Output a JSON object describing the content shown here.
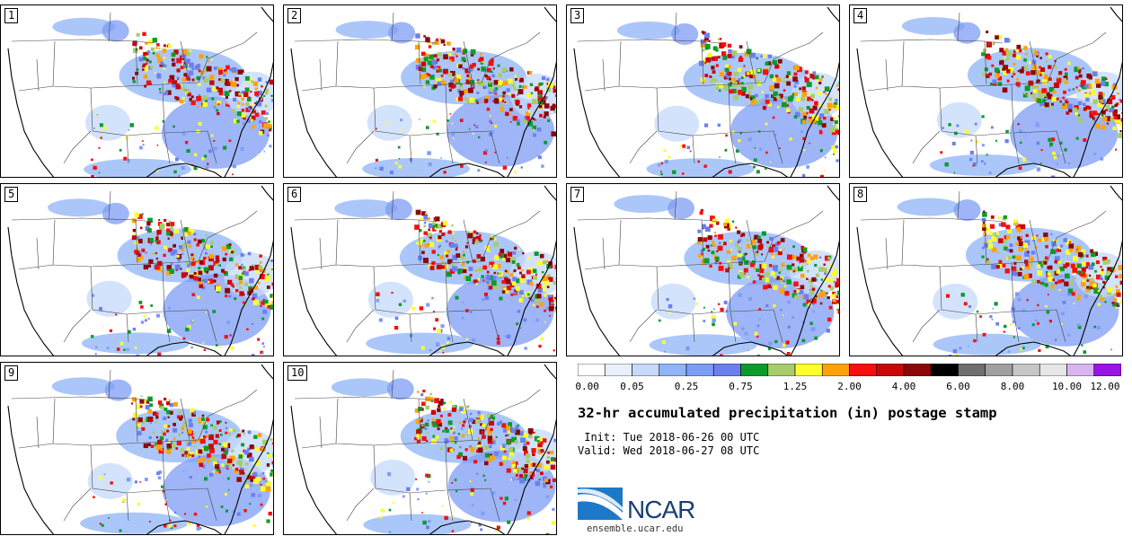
{
  "members": [
    {
      "label": "1",
      "seed": 11
    },
    {
      "label": "2",
      "seed": 23
    },
    {
      "label": "3",
      "seed": 37
    },
    {
      "label": "4",
      "seed": 41
    },
    {
      "label": "5",
      "seed": 53
    },
    {
      "label": "6",
      "seed": 67
    },
    {
      "label": "7",
      "seed": 71
    },
    {
      "label": "8",
      "seed": 83
    },
    {
      "label": "9",
      "seed": 97
    },
    {
      "label": "10",
      "seed": 101
    }
  ],
  "colorbar": {
    "colors": [
      "#ffffff",
      "#e8f0fd",
      "#c6d9fb",
      "#8fb4f8",
      "#7d9cf4",
      "#6c7ff0",
      "#0a9c2a",
      "#a7cc6a",
      "#ffff29",
      "#ffa20a",
      "#f50f0f",
      "#c80808",
      "#8c0808",
      "#000000",
      "#6e6e6e",
      "#a0a0a0",
      "#c6c6c6",
      "#e6e6e6",
      "#d8b4f0",
      "#9a14e6"
    ],
    "tick_labels": [
      "0.00",
      "0.05",
      "0.25",
      "0.75",
      "1.25",
      "2.00",
      "4.00",
      "6.00",
      "8.00",
      "10.00",
      "12.00"
    ]
  },
  "title": "32-hr accumulated precipitation (in) postage stamp",
  "init_line": " Init: Tue 2018-06-26 00 UTC",
  "valid_line": "Valid: Wed 2018-06-27 08 UTC",
  "logo_text": "NCAR",
  "site_url": "ensemble.ucar.edu"
}
